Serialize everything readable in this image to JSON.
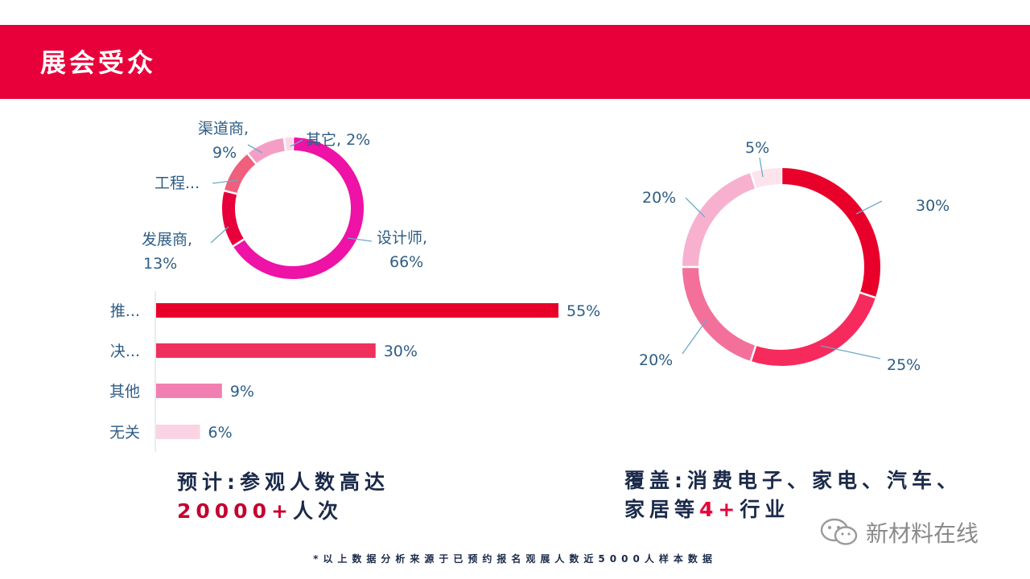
{
  "header": {
    "title": "展会受众",
    "color": "#e8003a"
  },
  "chart_data": [
    {
      "type": "pie",
      "slices": [
        {
          "label": "设计师",
          "value": 66,
          "text": "设计师,",
          "pct": "66%",
          "color": "#ee12a6"
        },
        {
          "label": "发展商",
          "value": 13,
          "text": "发展商,",
          "pct": "13%",
          "color": "#e8003a"
        },
        {
          "label": "工程...",
          "value": 10,
          "text": "工程...",
          "pct": "",
          "color": "#f05f7c"
        },
        {
          "label": "渠道商",
          "value": 9,
          "text": "渠道商,",
          "pct": "9%",
          "color": "#f49ec6"
        },
        {
          "label": "其它",
          "value": 2,
          "text": "其它,",
          "pct": "2%",
          "color": "#fbd9e8"
        }
      ]
    },
    {
      "type": "bar",
      "orientation": "horizontal",
      "categories": [
        "推...",
        "决...",
        "其他",
        "无关"
      ],
      "values": [
        55,
        30,
        9,
        6
      ],
      "value_labels": [
        "55%",
        "30%",
        "9%",
        "6%"
      ],
      "colors": [
        "#e8002a",
        "#f0305c",
        "#f27fb2",
        "#fbd4e4"
      ],
      "xlim": [
        0,
        60
      ]
    },
    {
      "type": "pie",
      "slices": [
        {
          "value": 30,
          "pct": "30%",
          "color": "#e8002a"
        },
        {
          "value": 25,
          "pct": "25%",
          "color": "#f72a5e"
        },
        {
          "value": 20,
          "pct": "20%",
          "color": "#f2709a"
        },
        {
          "value": 20,
          "pct": "20%",
          "color": "#f7b1cf"
        },
        {
          "value": 5,
          "pct": "5%",
          "color": "#fde3ec"
        }
      ]
    }
  ],
  "summary_left": {
    "line1": "预计:参观人数高达",
    "number": "20000+",
    "suffix": "人次"
  },
  "summary_right": {
    "line1": "覆盖:消费电子、家电、汽车、",
    "line2_pre": "家居等",
    "number": "4+",
    "line2_post": "行业"
  },
  "footnote": "*以上数据分析来源于已预约报名观展人数近5000人样本数据",
  "watermark": {
    "text": "新材料在线",
    "icon": "wechat-icon"
  }
}
